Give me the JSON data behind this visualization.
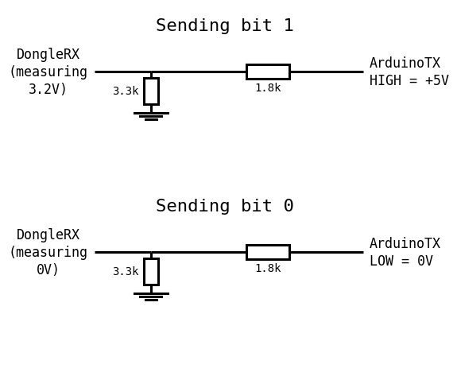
{
  "title1": "Sending bit 1",
  "title2": "Sending bit 0",
  "left_label1": "DongleRX\n(measuring\n3.2V)",
  "left_label2": "DongleRX\n(measuring\n0V)",
  "right_label1": "ArduinoTX\nHIGH = +5V",
  "right_label2": "ArduinoTX\nLOW = 0V",
  "r1_label": "3.3k",
  "r2_label": "1.8k",
  "bg_color": "#ffffff",
  "line_color": "#000000",
  "title_fontsize": 16,
  "label_fontsize": 12,
  "resistor_fontsize": 10
}
